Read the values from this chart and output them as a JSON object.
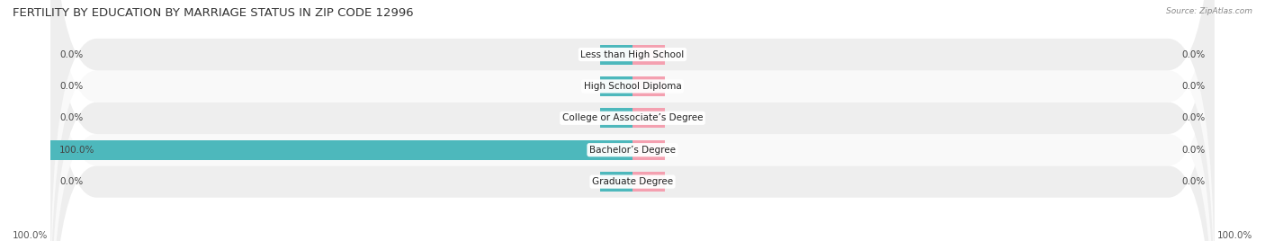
{
  "title": "FERTILITY BY EDUCATION BY MARRIAGE STATUS IN ZIP CODE 12996",
  "source": "Source: ZipAtlas.com",
  "categories": [
    "Less than High School",
    "High School Diploma",
    "College or Associate’s Degree",
    "Bachelor’s Degree",
    "Graduate Degree"
  ],
  "married_values": [
    0.0,
    0.0,
    0.0,
    100.0,
    0.0
  ],
  "unmarried_values": [
    0.0,
    0.0,
    0.0,
    0.0,
    0.0
  ],
  "married_color": "#4db8bc",
  "unmarried_color": "#f4a0b0",
  "row_bg_even": "#eeeeee",
  "row_bg_odd": "#f9f9f9",
  "title_fontsize": 9.5,
  "label_fontsize": 7.5,
  "tick_fontsize": 7.5,
  "max_value": 100.0,
  "fig_width": 14.06,
  "fig_height": 2.68
}
